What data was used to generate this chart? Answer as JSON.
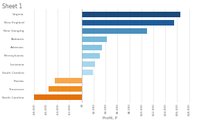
{
  "title": "Sheet 1",
  "xlabel": "Profit, P",
  "categories": [
    "Virginia",
    "New England",
    "New Ganging",
    "Alabama",
    "Arkansas",
    "Pennsylvania",
    "Louisiana",
    "South Carolina",
    "Florida",
    "Tennessee",
    "North Carolina"
  ],
  "values": [
    16500,
    15500,
    11000,
    4200,
    3400,
    3000,
    2200,
    1900,
    -4500,
    -5500,
    -8000
  ],
  "bar_colors": [
    "#1a4a7a",
    "#1e5c99",
    "#4a8fbd",
    "#75b8d8",
    "#85c4e0",
    "#95cce5",
    "#a8d5ec",
    "#b5ddf0",
    "#f9a74b",
    "#f08c20",
    "#e5700a"
  ],
  "xlim": [
    -9500,
    19000
  ],
  "xtick_values": [
    -8000,
    -6000,
    -4000,
    -2000,
    0,
    2000,
    4000,
    6000,
    8000,
    10000,
    12000,
    14000,
    16000,
    18000
  ],
  "background_color": "#ffffff",
  "bar_height": 0.65,
  "title_fontsize": 5.5,
  "axis_label_fontsize": 4,
  "tick_fontsize": 3.2,
  "ytick_fontsize": 3.2
}
